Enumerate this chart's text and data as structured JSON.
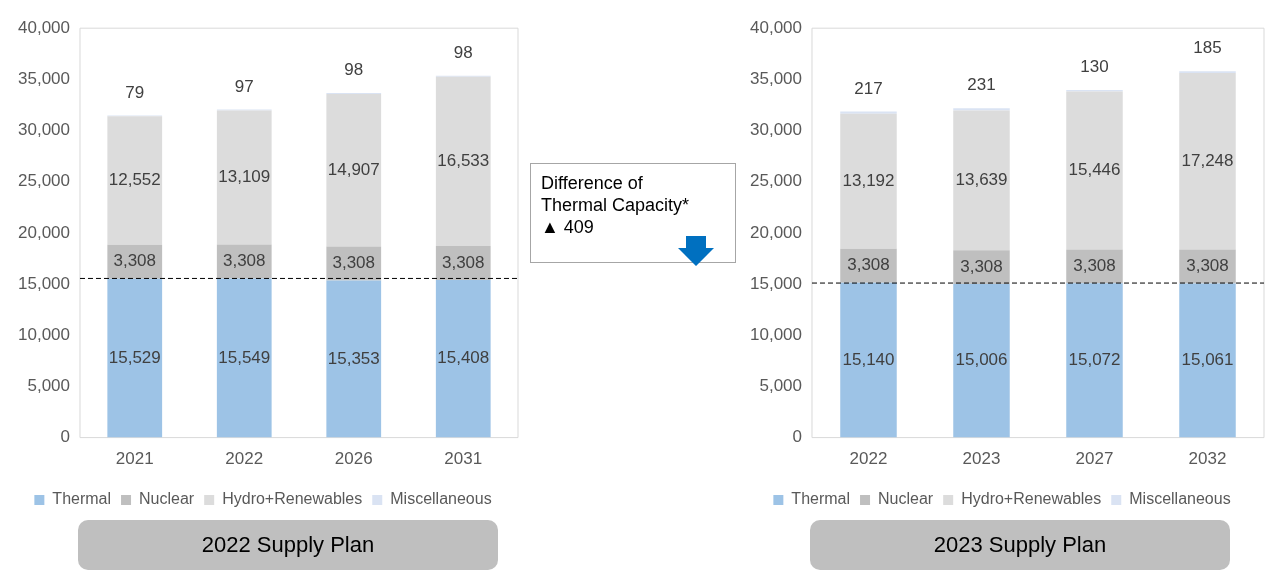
{
  "chart_data": [
    {
      "type": "bar",
      "title": "2022 Supply Plan",
      "categories": [
        "2021",
        "2022",
        "2026",
        "2031"
      ],
      "stacked": true,
      "series": [
        {
          "name": "Thermal",
          "color": "#9dc3e6",
          "values": [
            15529,
            15549,
            15353,
            15408
          ],
          "value_labels": [
            "15,529",
            "15,549",
            "15,353",
            "15,408"
          ]
        },
        {
          "name": "Nuclear",
          "color": "#bfbfbf",
          "values": [
            3308,
            3308,
            3308,
            3308
          ],
          "value_labels": [
            "3,308",
            "3,308",
            "3,308",
            "3,308"
          ]
        },
        {
          "name": "Hydro+Renewables",
          "color": "#dcdcdc",
          "values": [
            12552,
            13109,
            14907,
            16533
          ],
          "value_labels": [
            "12,552",
            "13,109",
            "14,907",
            "16,533"
          ]
        },
        {
          "name": "Miscellaneous",
          "color": "#dae3f3",
          "values": [
            79,
            97,
            98,
            98
          ],
          "value_labels": [
            "79",
            "97",
            "98",
            "98"
          ]
        }
      ],
      "ylim": [
        0,
        40000
      ],
      "yticks": [
        {
          "value": 0,
          "label": "0"
        },
        {
          "value": 5000,
          "label": "5,000"
        },
        {
          "value": 10000,
          "label": "10,000"
        },
        {
          "value": 15000,
          "label": "15,000"
        },
        {
          "value": 20000,
          "label": "20,000"
        },
        {
          "value": 25000,
          "label": "25,000"
        },
        {
          "value": 30000,
          "label": "30,000"
        },
        {
          "value": 35000,
          "label": "35,000"
        },
        {
          "value": 40000,
          "label": "40,000"
        }
      ],
      "grid": false,
      "legend": "bottom",
      "ref_lines": [
        {
          "axis": "y",
          "value": 15550,
          "line_style": "dashed",
          "color": "#000000"
        }
      ],
      "annotations": [
        "Difference of",
        "Thermal Capacity*",
        "▲ 409"
      ]
    },
    {
      "type": "bar",
      "title": "2023 Supply Plan",
      "categories": [
        "2022",
        "2023",
        "2027",
        "2032"
      ],
      "stacked": true,
      "series": [
        {
          "name": "Thermal",
          "color": "#9dc3e6",
          "values": [
            15140,
            15006,
            15072,
            15061
          ],
          "value_labels": [
            "15,140",
            "15,006",
            "15,072",
            "15,061"
          ]
        },
        {
          "name": "Nuclear",
          "color": "#bfbfbf",
          "values": [
            3308,
            3308,
            3308,
            3308
          ],
          "value_labels": [
            "3,308",
            "3,308",
            "3,308",
            "3,308"
          ]
        },
        {
          "name": "Hydro+Renewables",
          "color": "#dcdcdc",
          "values": [
            13192,
            13639,
            15446,
            17248
          ],
          "value_labels": [
            "13,192",
            "13,639",
            "15,446",
            "17,248"
          ]
        },
        {
          "name": "Miscellaneous",
          "color": "#dae3f3",
          "values": [
            217,
            231,
            130,
            185
          ],
          "value_labels": [
            "217",
            "231",
            "130",
            "185"
          ]
        }
      ],
      "ylim": [
        0,
        40000
      ],
      "yticks": [
        {
          "value": 0,
          "label": "0"
        },
        {
          "value": 5000,
          "label": "5,000"
        },
        {
          "value": 10000,
          "label": "10,000"
        },
        {
          "value": 15000,
          "label": "15,000"
        },
        {
          "value": 20000,
          "label": "20,000"
        },
        {
          "value": 25000,
          "label": "25,000"
        },
        {
          "value": 30000,
          "label": "30,000"
        },
        {
          "value": 35000,
          "label": "35,000"
        },
        {
          "value": 40000,
          "label": "40,000"
        }
      ],
      "grid": false,
      "legend": "bottom",
      "ref_lines": [
        {
          "axis": "y",
          "value": 15100,
          "line_style": "dashed",
          "color": "#000000"
        }
      ]
    }
  ]
}
